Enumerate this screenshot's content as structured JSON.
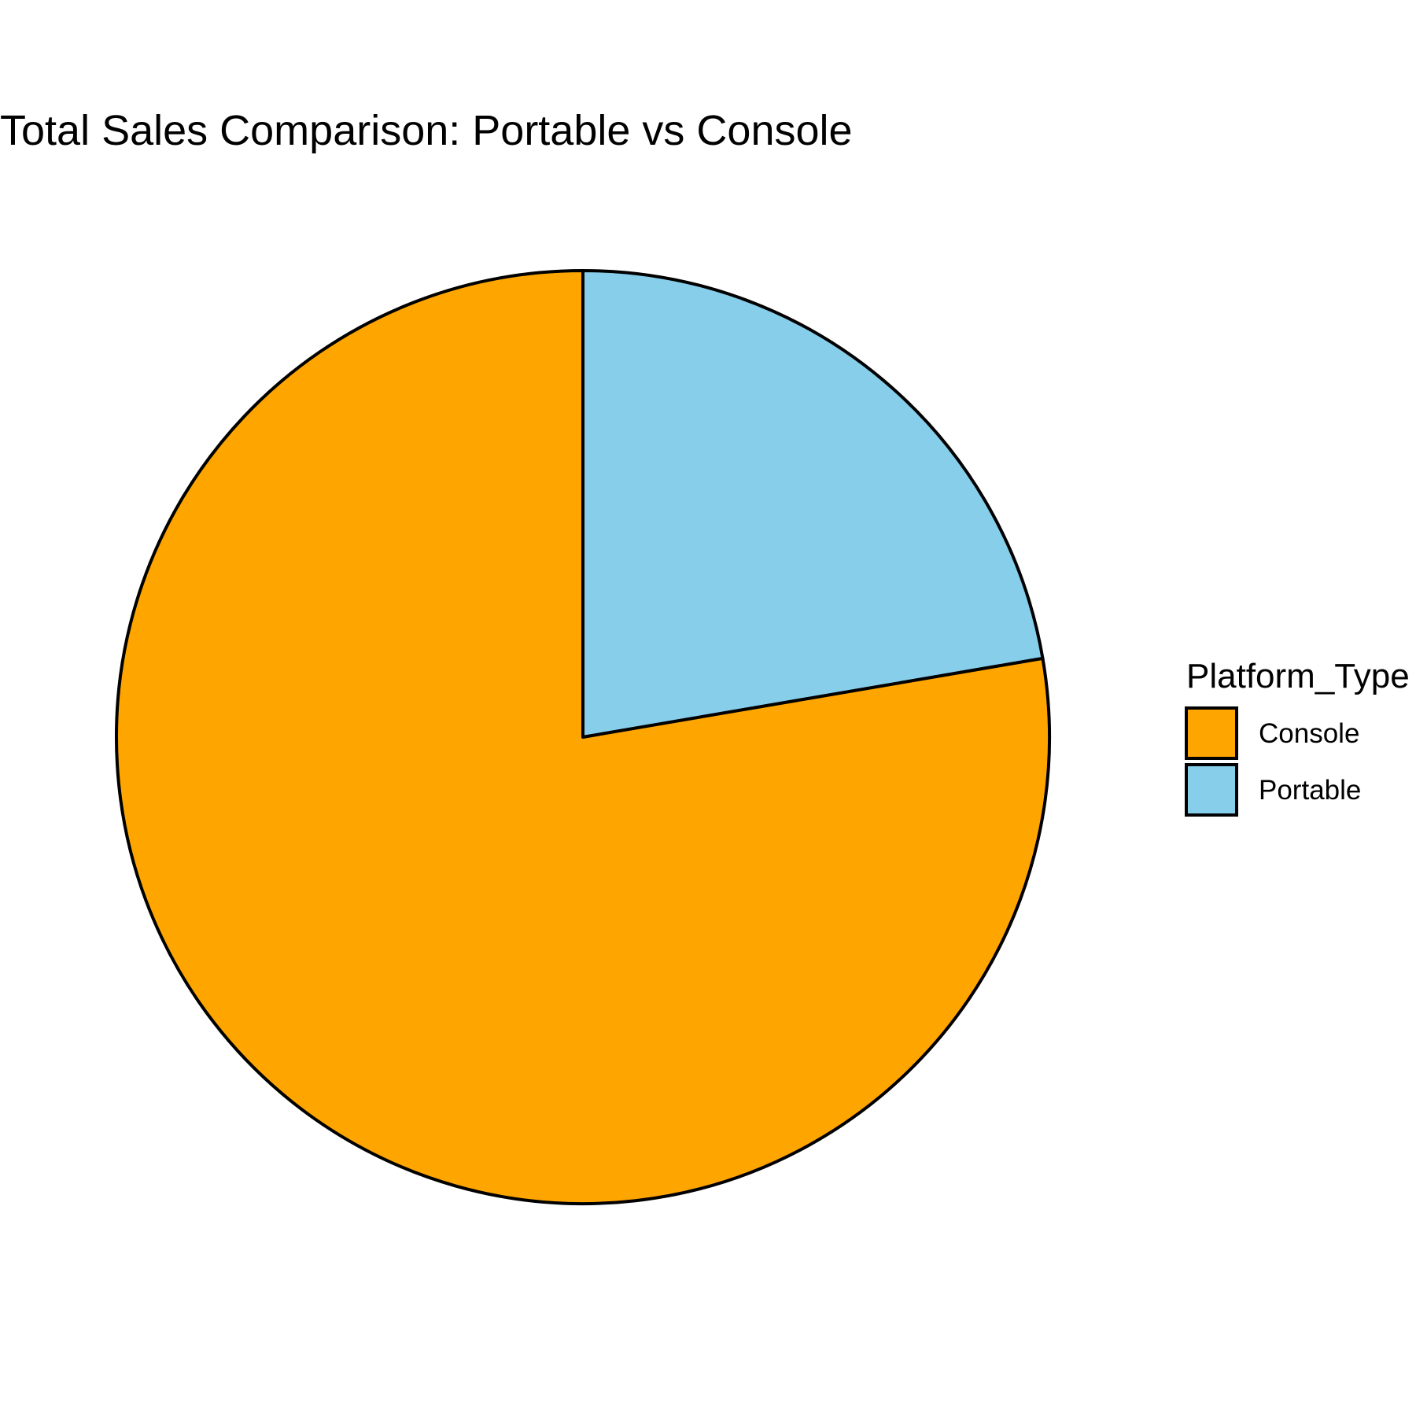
{
  "chart_data": {
    "type": "pie",
    "title": "Total Sales Comparison: Portable vs Console",
    "legend": {
      "title": "Platform_Type",
      "placement": "right"
    },
    "start": "12 o'clock",
    "direction": "clockwise",
    "slices": [
      {
        "label": "Portable",
        "value": 22.3,
        "color": "#87CEEB"
      },
      {
        "label": "Console",
        "value": 77.7,
        "color": "#FFA500"
      }
    ],
    "legend_order": [
      "Console",
      "Portable"
    ],
    "slice_border_color": "#000000"
  }
}
